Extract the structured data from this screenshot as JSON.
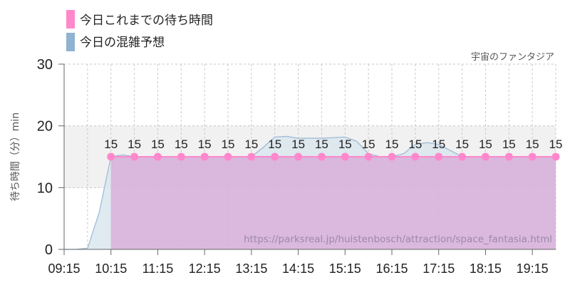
{
  "attribution": "宇宙のファンタジア",
  "watermark": "https://parksreal.jp/huistenbosch/attraction/space_fantasia.html",
  "legend": [
    {
      "label": "今日これまでの待ち時間",
      "color": "#ff88cc"
    },
    {
      "label": "今日の混雑予想",
      "color": "#8fb3d1"
    }
  ],
  "chart_data": {
    "type": "line",
    "xlabel": "",
    "ylabel": "待ち時間（分）min",
    "ylim": [
      0,
      30
    ],
    "yticks": [
      0,
      10,
      20,
      30
    ],
    "xlim": [
      "09:15",
      "19:45"
    ],
    "xticks": [
      "09:15",
      "10:15",
      "11:15",
      "12:15",
      "13:15",
      "14:15",
      "15:15",
      "16:15",
      "17:15",
      "18:15",
      "19:15"
    ],
    "highlight_band": [
      10,
      20
    ],
    "series": [
      {
        "name": "今日これまでの待ち時間",
        "color": "#ff88cc",
        "x": [
          "10:15",
          "10:45",
          "11:15",
          "11:45",
          "12:15",
          "12:45",
          "13:15",
          "13:45",
          "14:15",
          "14:45",
          "15:15",
          "15:45",
          "16:15",
          "16:45",
          "17:15",
          "17:45",
          "18:15",
          "18:45",
          "19:15",
          "19:45"
        ],
        "values": [
          15,
          15,
          15,
          15,
          15,
          15,
          15,
          15,
          15,
          15,
          15,
          15,
          15,
          15,
          15,
          15,
          15,
          15,
          15,
          15
        ]
      },
      {
        "name": "今日の混雑予想",
        "color": "#8fb3d1",
        "x": [
          "09:15",
          "09:30",
          "09:45",
          "10:00",
          "10:15",
          "10:30",
          "10:45",
          "11:15",
          "11:45",
          "12:15",
          "12:45",
          "13:15",
          "13:30",
          "13:45",
          "14:00",
          "14:15",
          "14:45",
          "15:15",
          "15:30",
          "15:45",
          "16:00",
          "16:15",
          "16:30",
          "16:45",
          "17:00",
          "17:15",
          "17:30",
          "17:45",
          "18:15",
          "18:45",
          "19:15",
          "19:45"
        ],
        "values": [
          0,
          0,
          0.2,
          6,
          15,
          15.3,
          15,
          15,
          15,
          15,
          15,
          15,
          16.5,
          18.2,
          18.3,
          18,
          18,
          18.2,
          17.5,
          15.5,
          15,
          15,
          15.5,
          17,
          17.3,
          17,
          16,
          15,
          15,
          15,
          15,
          15
        ]
      }
    ]
  }
}
